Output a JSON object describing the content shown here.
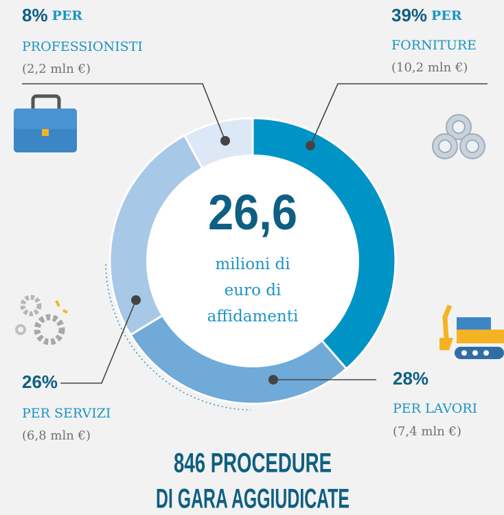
{
  "chart_data": {
    "type": "pie",
    "categories": [
      "FORNITURE",
      "LAVORI",
      "SERVIZI",
      "PROFESSIONISTI"
    ],
    "values": [
      39,
      28,
      26,
      8
    ],
    "value_labels": [
      "39%",
      "28%",
      "26%",
      "8%"
    ],
    "colors": [
      "#0093c6",
      "#6faad8",
      "#a7c8e6",
      "#dce8f5"
    ],
    "category_prefix": "PER",
    "amounts": [
      "(10,2 mln €)",
      "(7,4 mln €)",
      "(6,8 mln €)",
      "(2,2 mln €)"
    ],
    "center_value": "26,6",
    "center_caption": [
      "milioni di",
      "euro di",
      "affidamenti"
    ],
    "footer": [
      "846 PROCEDURE",
      "DI GARA AGGIUDICATE"
    ]
  }
}
